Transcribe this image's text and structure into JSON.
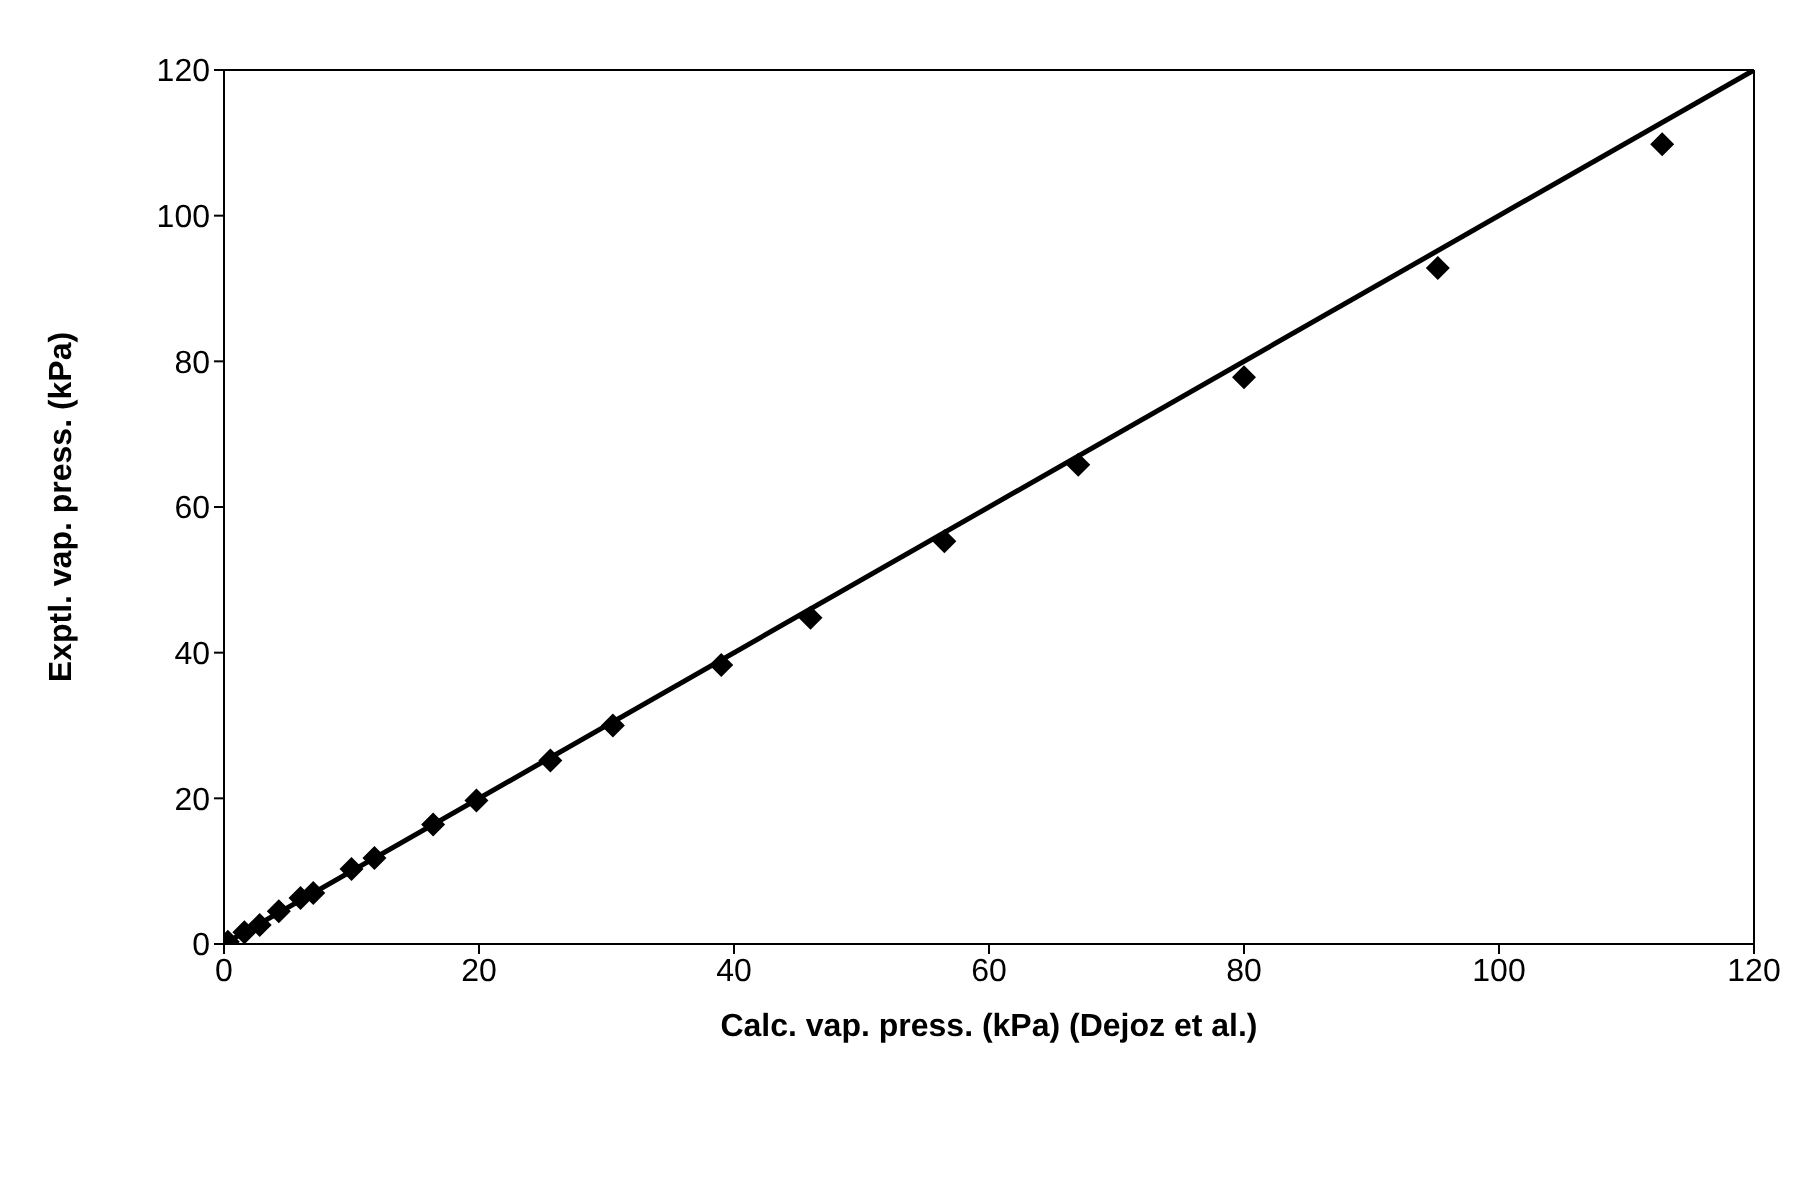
{
  "chart_data": {
    "type": "scatter",
    "xlabel": "Calc. vap. press. (kPa) (Dejoz et al.)",
    "ylabel": "Exptl. vap. press. (kPa)",
    "xlim": [
      0,
      120
    ],
    "xticks": [
      0,
      20,
      40,
      60,
      80,
      100,
      120
    ],
    "ylim": [
      0,
      120
    ],
    "yticks": [
      0,
      20,
      40,
      60,
      80,
      100,
      120
    ],
    "series": [
      {
        "type": "scatter",
        "color": "#000000",
        "marker": "diamond",
        "x": [
          0.3,
          1.6,
          2.8,
          4.3,
          6,
          7,
          10,
          11.8,
          16.4,
          19.8,
          25.6,
          30.5,
          39,
          46,
          56.5,
          67,
          80,
          95.2,
          112.8
        ],
        "values": [
          0.3,
          1.6,
          2.6,
          4.5,
          6.3,
          7,
          10.3,
          11.8,
          16.4,
          19.7,
          25.2,
          30,
          38.3,
          44.8,
          55.3,
          65.8,
          77.8,
          92.8,
          109.8
        ]
      },
      {
        "type": "line",
        "color": "#000000",
        "marker": "none",
        "line_style": "solid",
        "x": [
          0,
          120
        ],
        "values": [
          0,
          120
        ]
      }
    ]
  }
}
